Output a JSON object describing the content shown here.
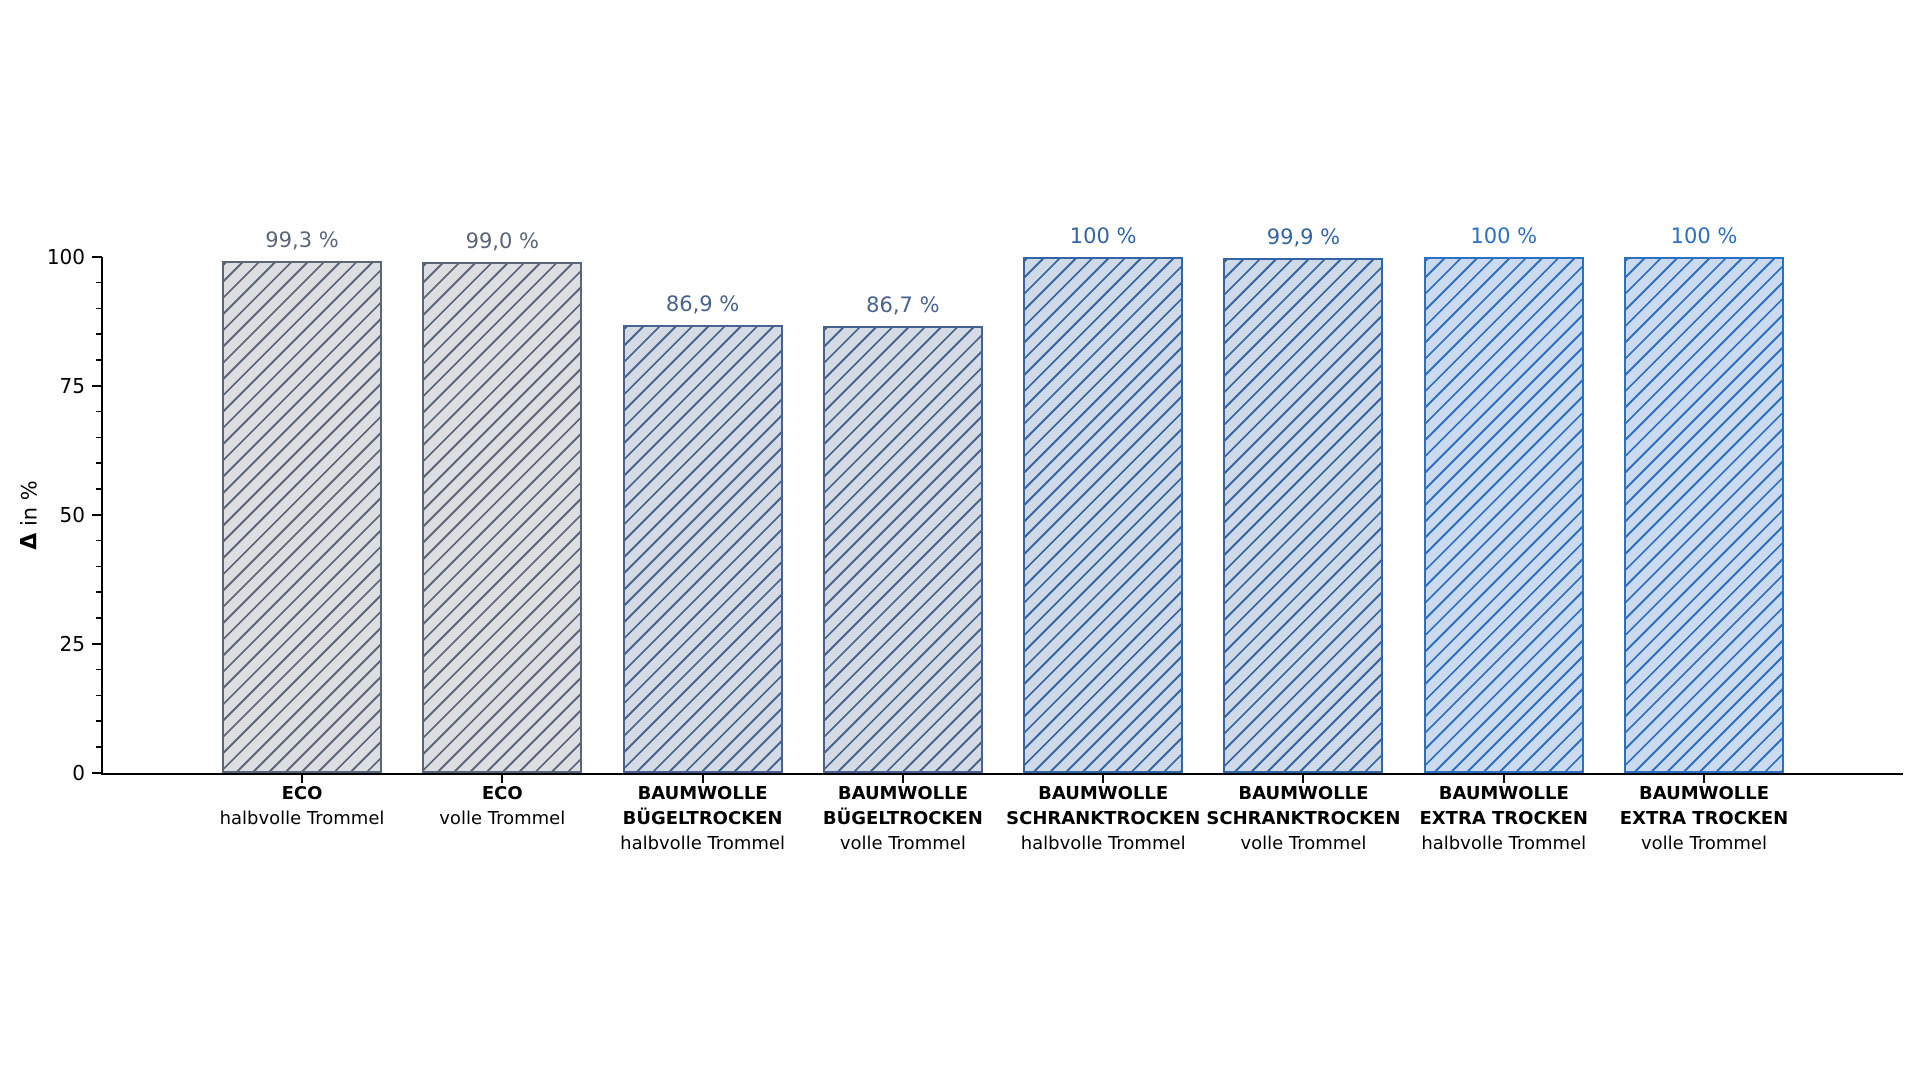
{
  "chart_data": {
    "type": "bar",
    "title": "",
    "ylabel": "Δ in %",
    "ylabel_symbol": "Δ",
    "ylabel_rest": " in %",
    "ylim": [
      0,
      100
    ],
    "yticks": [
      0,
      25,
      50,
      75,
      100
    ],
    "minor_tick_step": 5,
    "grid": false,
    "legend": null,
    "hatch_style": "/",
    "categories": [
      "ECO halbvolle Trommel",
      "ECO volle Trommel",
      "BAUMWOLLE BÜGELTROCKEN halbvolle Trommel",
      "BAUMWOLLE BÜGELTROCKEN volle Trommel",
      "BAUMWOLLE SCHRANKTROCKEN halbvolle Trommel",
      "BAUMWOLLE SCHRANKTROCKEN volle Trommel",
      "BAUMWOLLE EXTRA TROCKEN halbvolle Trommel",
      "BAUMWOLLE EXTRA TROCKEN volle Trommel"
    ],
    "bars": [
      {
        "program": "ECO",
        "load": "halbvolle Trommel",
        "value": 99.3,
        "label": "99,3 %",
        "fill": "#dcdee2",
        "edge": "#5b6578"
      },
      {
        "program": "ECO",
        "load": "volle Trommel",
        "value": 99.0,
        "label": "99,0 %",
        "fill": "#dcdee2",
        "edge": "#5b6578"
      },
      {
        "program": "BAUMWOLLE\nBÜGELTROCKEN",
        "load": "halbvolle Trommel",
        "value": 86.9,
        "label": "86,9 %",
        "fill": "#d5dbe5",
        "edge": "#47628e"
      },
      {
        "program": "BAUMWOLLE\nBÜGELTROCKEN",
        "load": "volle Trommel",
        "value": 86.7,
        "label": "86,7 %",
        "fill": "#d5dbe5",
        "edge": "#47628e"
      },
      {
        "program": "BAUMWOLLE\nSCHRANKTROCKEN",
        "load": "halbvolle Trommel",
        "value": 100,
        "label": "100 %",
        "fill": "#cfd9e8",
        "edge": "#3365a4"
      },
      {
        "program": "BAUMWOLLE\nSCHRANKTROCKEN",
        "load": "volle Trommel",
        "value": 99.9,
        "label": "99,9 %",
        "fill": "#cfd9e8",
        "edge": "#3365a4"
      },
      {
        "program": "BAUMWOLLE\nEXTRA TROCKEN",
        "load": "halbvolle Trommel",
        "value": 100,
        "label": "100 %",
        "fill": "#cbdaee",
        "edge": "#2c70c1"
      },
      {
        "program": "BAUMWOLLE\nEXTRA TROCKEN",
        "load": "volle Trommel",
        "value": 100,
        "label": "100 %",
        "fill": "#cbdaee",
        "edge": "#2c70c1"
      }
    ]
  }
}
